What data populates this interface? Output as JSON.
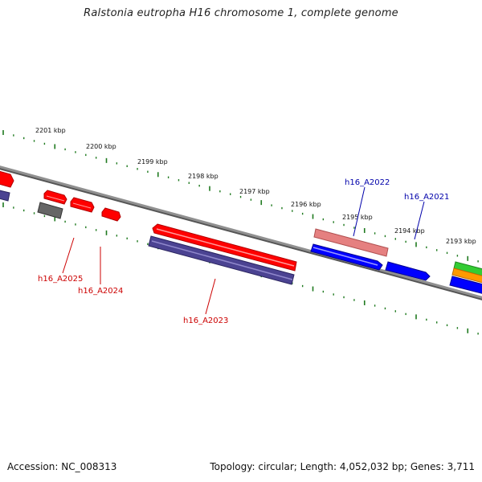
{
  "title": "Ralstonia eutropha H16 chromosome 1, complete genome",
  "footer": {
    "accession": "Accession: NC_008313",
    "summary": "Topology: circular; Length: 4,052,032 bp; Genes: 3,711"
  },
  "colors": {
    "backbone": "#808080",
    "tick": "#1f7a1f",
    "forward_cds": "#ff0000",
    "reverse_cds": "#0000ff",
    "pseudo_forward": "#f08080",
    "other_reverse": "#4b4392",
    "other_gray": "#666666",
    "rna_green": "#33cc33",
    "rna_orange": "#ff9900",
    "label_red": "#cc0000",
    "label_blue": "#0000aa"
  },
  "scale_labels": [
    "2201 kbp",
    "2200 kbp",
    "2199 kbp",
    "2198 kbp",
    "2197 kbp",
    "2196 kbp",
    "2195 kbp",
    "2194 kbp",
    "2193 kbp"
  ],
  "gene_labels": [
    {
      "text": "h16_A2022",
      "color": "label_blue"
    },
    {
      "text": "h16_A2021",
      "color": "label_blue"
    },
    {
      "text": "h16_A2025",
      "color": "label_red"
    },
    {
      "text": "h16_A2024",
      "color": "label_red"
    },
    {
      "text": "h16_A2023",
      "color": "label_red"
    }
  ]
}
